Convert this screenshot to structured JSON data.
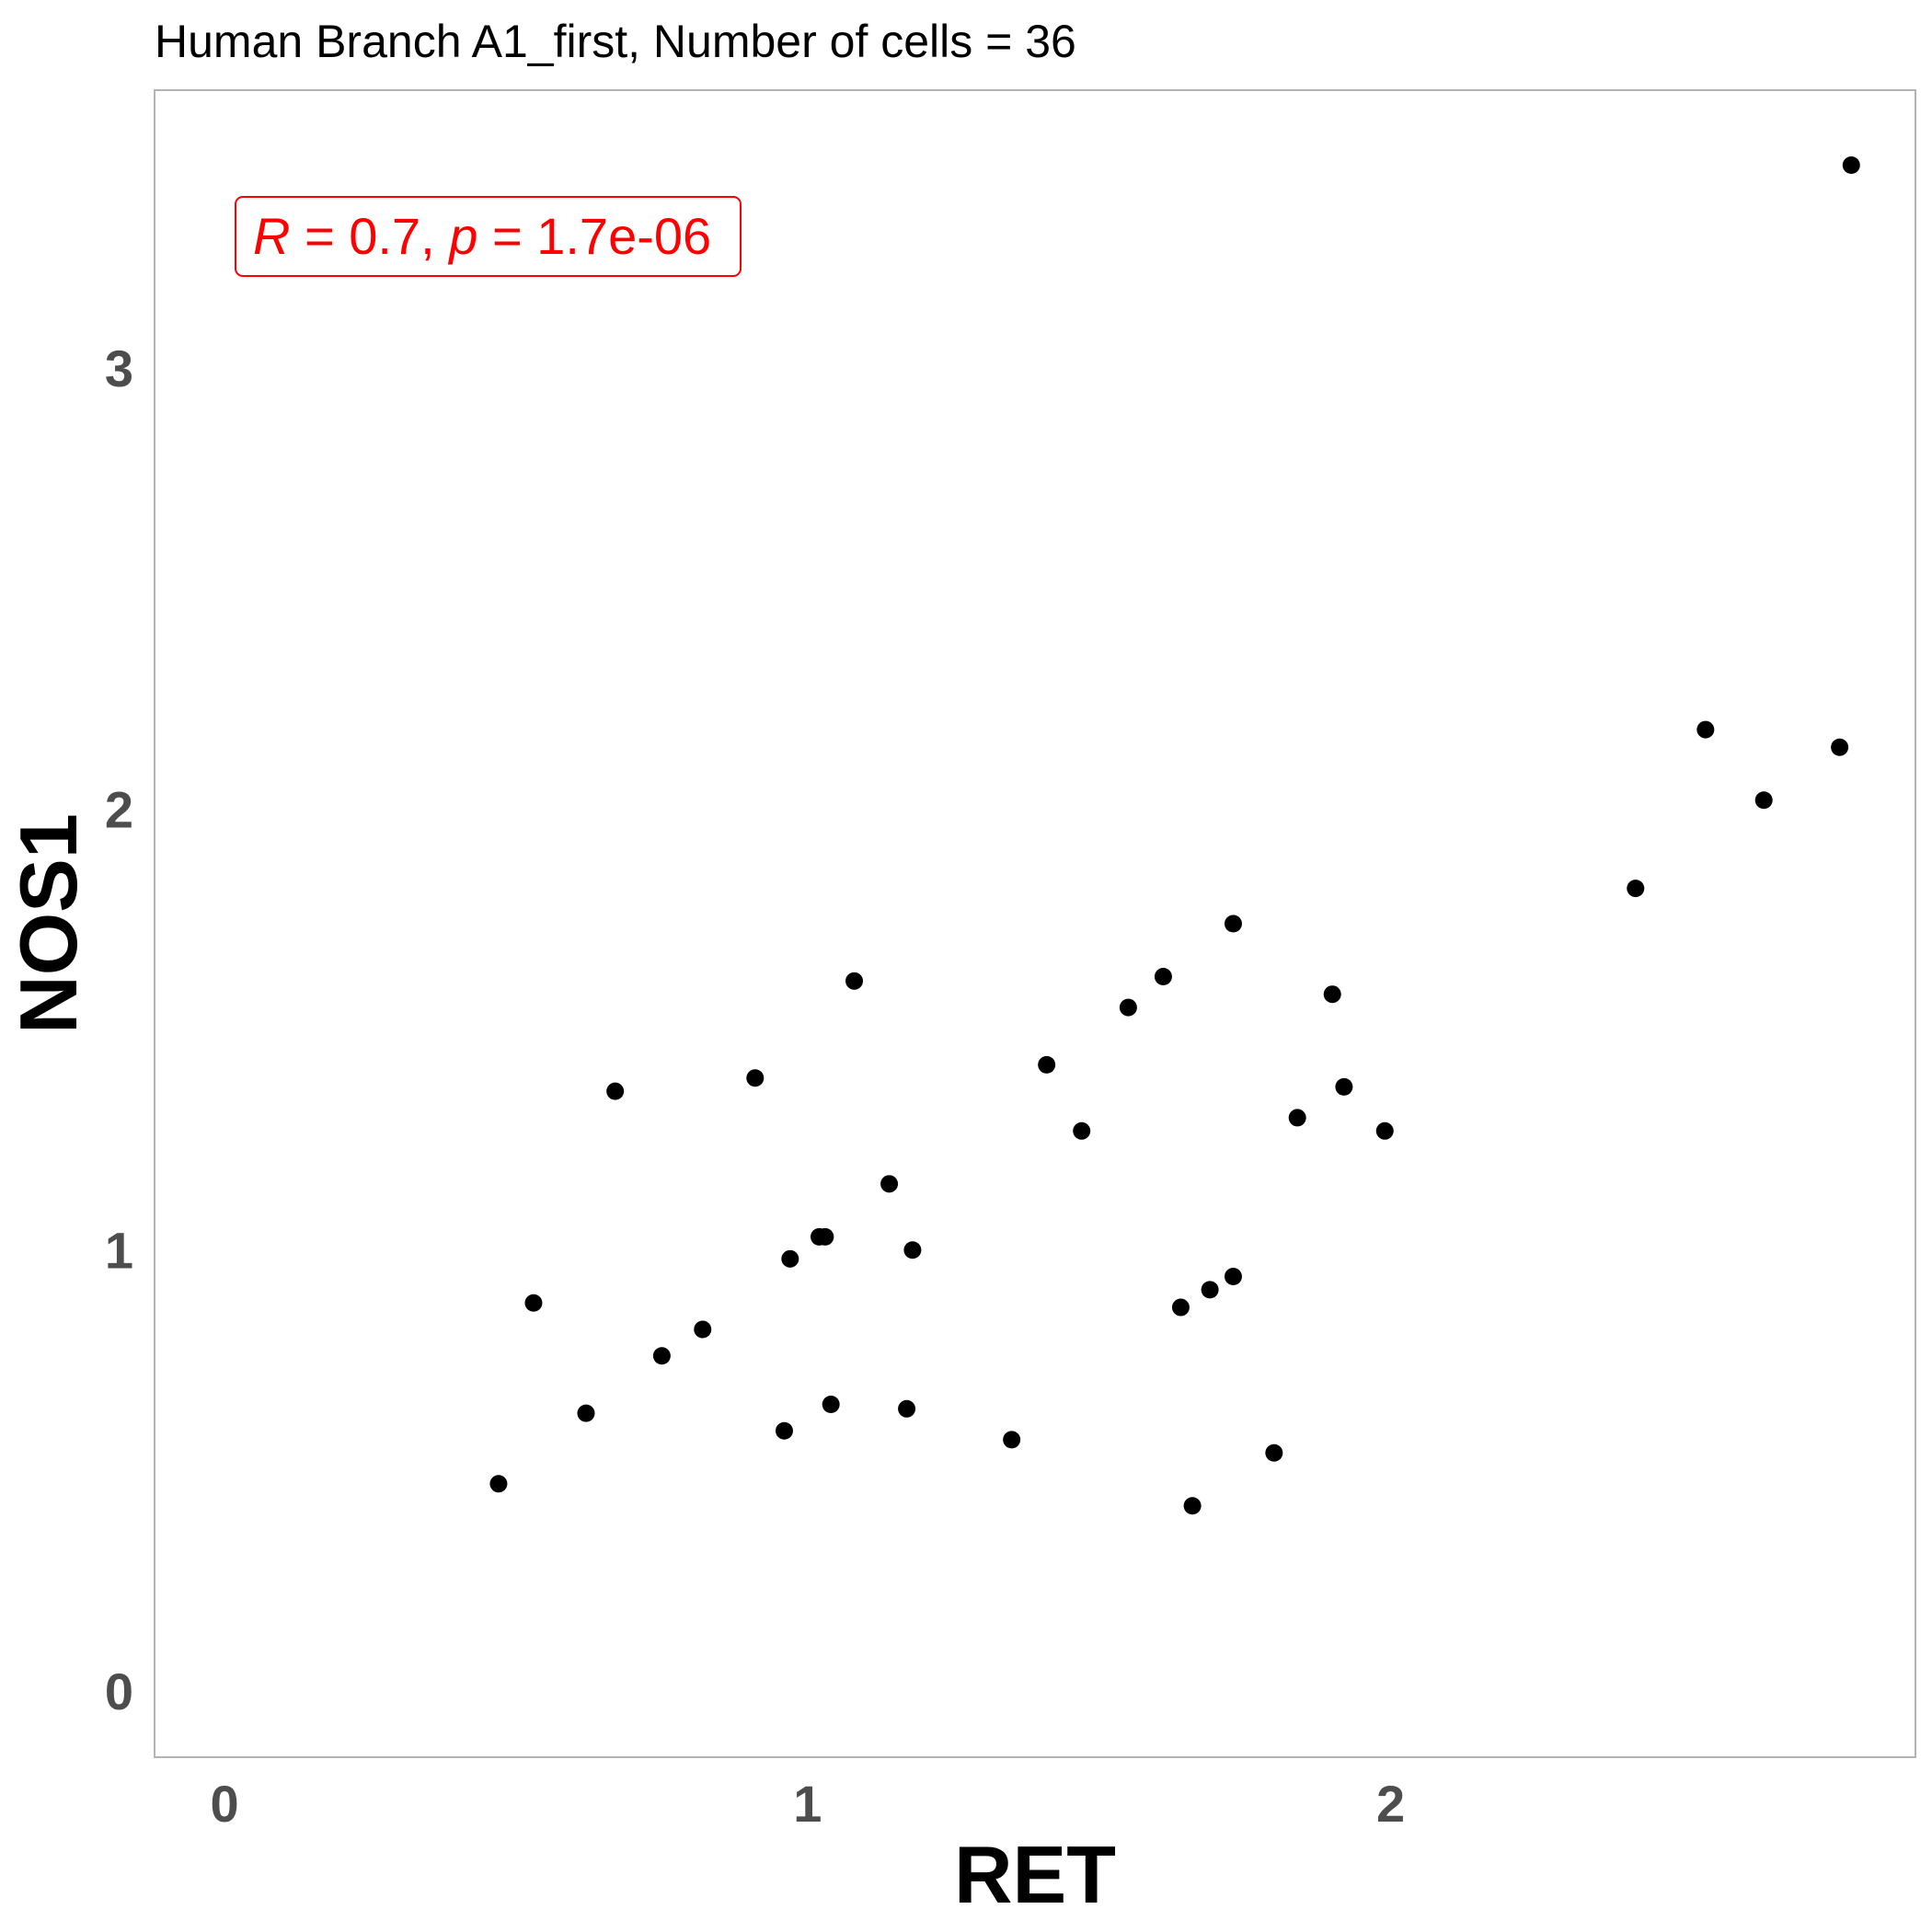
{
  "chart_data": {
    "type": "scatter",
    "title": "Human Branch A1_first, Number of cells = 36",
    "xlabel": "RET",
    "ylabel": "NOS1",
    "xlim": [
      -0.12,
      2.9
    ],
    "ylim": [
      -0.15,
      3.63
    ],
    "xticks": [
      0,
      1,
      2
    ],
    "yticks": [
      0,
      1,
      2,
      3
    ],
    "grid": false,
    "point_color": "#000000",
    "annotation": {
      "r_label": "R",
      "r_value": " = 0.7, ",
      "p_label": "p",
      "p_value": " = 1.7e-06",
      "color": "#ff0000"
    },
    "points": [
      {
        "x": 0.47,
        "y": 0.47
      },
      {
        "x": 0.53,
        "y": 0.88
      },
      {
        "x": 0.62,
        "y": 0.63
      },
      {
        "x": 0.67,
        "y": 1.36
      },
      {
        "x": 0.75,
        "y": 0.76
      },
      {
        "x": 0.82,
        "y": 0.82
      },
      {
        "x": 0.91,
        "y": 1.39
      },
      {
        "x": 0.96,
        "y": 0.59
      },
      {
        "x": 0.97,
        "y": 0.98
      },
      {
        "x": 1.02,
        "y": 1.03
      },
      {
        "x": 1.03,
        "y": 1.03
      },
      {
        "x": 1.04,
        "y": 0.65
      },
      {
        "x": 1.08,
        "y": 1.61
      },
      {
        "x": 1.14,
        "y": 1.15
      },
      {
        "x": 1.17,
        "y": 0.64
      },
      {
        "x": 1.18,
        "y": 1.0
      },
      {
        "x": 1.35,
        "y": 0.57
      },
      {
        "x": 1.41,
        "y": 1.42
      },
      {
        "x": 1.47,
        "y": 1.27
      },
      {
        "x": 1.55,
        "y": 1.55
      },
      {
        "x": 1.61,
        "y": 1.62
      },
      {
        "x": 1.64,
        "y": 0.87
      },
      {
        "x": 1.66,
        "y": 0.42
      },
      {
        "x": 1.69,
        "y": 0.91
      },
      {
        "x": 1.73,
        "y": 1.74
      },
      {
        "x": 1.73,
        "y": 0.94
      },
      {
        "x": 1.8,
        "y": 0.54
      },
      {
        "x": 1.84,
        "y": 1.3
      },
      {
        "x": 1.9,
        "y": 1.58
      },
      {
        "x": 1.92,
        "y": 1.37
      },
      {
        "x": 1.99,
        "y": 1.27
      },
      {
        "x": 2.42,
        "y": 1.82
      },
      {
        "x": 2.54,
        "y": 2.18
      },
      {
        "x": 2.64,
        "y": 2.02
      },
      {
        "x": 2.77,
        "y": 2.14
      },
      {
        "x": 2.79,
        "y": 3.46
      }
    ]
  }
}
